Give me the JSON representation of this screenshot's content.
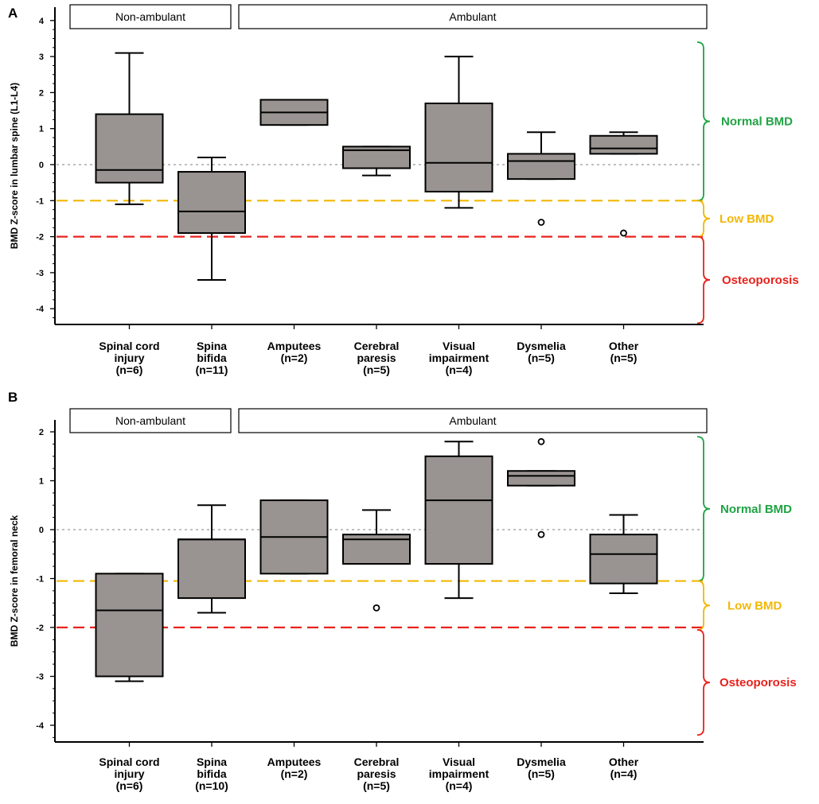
{
  "colors": {
    "box_fill": "#999491",
    "normal": "#1fa343",
    "low": "#f2b705",
    "osteoporosis": "#e8221c",
    "zero_line": "#999999"
  },
  "chart_data": [
    {
      "type": "box",
      "panel": "A",
      "ylabel": "BMD Z-score in lumbar spine (L1-L4)",
      "ylim": [
        -4.4,
        4.4
      ],
      "yticks": [
        4,
        3,
        2,
        1,
        0,
        -1,
        -2,
        -3,
        -4
      ],
      "ytick_labels": [
        "4",
        "3",
        "2",
        "1",
        "0",
        "-1",
        "-2",
        "-3",
        "-4"
      ],
      "groups": [
        {
          "label": "Non-ambulant",
          "from": 0,
          "to": 1
        },
        {
          "label": "Ambulant",
          "from": 2,
          "to": 6
        }
      ],
      "categories": [
        {
          "lines": [
            "Spinal cord",
            "injury",
            "(n=6)"
          ],
          "q1": -0.5,
          "median": -0.15,
          "q3": 1.4,
          "whisker_low": -1.1,
          "whisker_high": 3.1,
          "outliers": []
        },
        {
          "lines": [
            "Spina",
            "bifida",
            "(n=11)"
          ],
          "q1": -1.9,
          "median": -1.3,
          "q3": -0.2,
          "whisker_low": -3.2,
          "whisker_high": 0.2,
          "outliers": []
        },
        {
          "lines": [
            "Amputees",
            "(n=2)"
          ],
          "q1": 1.1,
          "median": 1.45,
          "q3": 1.8,
          "whisker_low": 1.1,
          "whisker_high": 1.8,
          "outliers": []
        },
        {
          "lines": [
            "Cerebral",
            "paresis",
            "(n=5)"
          ],
          "q1": -0.1,
          "median": 0.4,
          "q3": 0.5,
          "whisker_low": -0.3,
          "whisker_high": 0.5,
          "outliers": []
        },
        {
          "lines": [
            "Visual",
            "impairment",
            "(n=4)"
          ],
          "q1": -0.75,
          "median": 0.05,
          "q3": 1.7,
          "whisker_low": -1.2,
          "whisker_high": 3.0,
          "outliers": []
        },
        {
          "lines": [
            "Dysmelia",
            "(n=5)"
          ],
          "q1": -0.4,
          "median": 0.1,
          "q3": 0.3,
          "whisker_low": -0.4,
          "whisker_high": 0.9,
          "outliers": [
            -1.6
          ]
        },
        {
          "lines": [
            "Other",
            "(n=5)"
          ],
          "q1": 0.3,
          "median": 0.45,
          "q3": 0.8,
          "whisker_low": 0.3,
          "whisker_high": 0.9,
          "outliers": [
            -1.9
          ]
        }
      ],
      "reference_lines": [
        {
          "y": 0,
          "style": "dotted",
          "color": "#999999"
        },
        {
          "y": -1,
          "style": "dashed",
          "color": "#f2b705"
        },
        {
          "y": -2,
          "style": "dashed",
          "color": "#e8221c"
        }
      ],
      "zones": [
        {
          "label": "Normal BMD",
          "from": 3.4,
          "to": -1.0,
          "color": "#1fa343"
        },
        {
          "label": "Low BMD",
          "from": -1.0,
          "to": -2.0,
          "color": "#f2b705"
        },
        {
          "label": "Osteoporosis",
          "from": -2.0,
          "to": -4.4,
          "color": "#e8221c"
        }
      ]
    },
    {
      "type": "box",
      "panel": "B",
      "ylabel": "BMD Z-score in femoral neck",
      "ylim": [
        -4.3,
        2.3
      ],
      "yticks": [
        2,
        1,
        0,
        -1,
        -2,
        -3,
        -4
      ],
      "ytick_labels": [
        "2",
        "1",
        "0",
        "-1",
        "-2",
        "-3",
        "-4"
      ],
      "groups": [
        {
          "label": "Non-ambulant",
          "from": 0,
          "to": 1
        },
        {
          "label": "Ambulant",
          "from": 2,
          "to": 6
        }
      ],
      "categories": [
        {
          "lines": [
            "Spinal cord",
            "injury",
            "(n=6)"
          ],
          "q1": -3.0,
          "median": -1.65,
          "q3": -0.9,
          "whisker_low": -3.1,
          "whisker_high": -0.9,
          "outliers": []
        },
        {
          "lines": [
            "Spina",
            "bifida",
            "(n=10)"
          ],
          "q1": -1.4,
          "median": -0.2,
          "q3": -0.2,
          "whisker_low": -1.7,
          "whisker_high": 0.5,
          "outliers": []
        },
        {
          "lines": [
            "Amputees",
            "(n=2)"
          ],
          "q1": -0.9,
          "median": -0.15,
          "q3": 0.6,
          "whisker_low": -0.9,
          "whisker_high": 0.6,
          "outliers": []
        },
        {
          "lines": [
            "Cerebral",
            "paresis",
            "(n=5)"
          ],
          "q1": -0.7,
          "median": -0.2,
          "q3": -0.1,
          "whisker_low": -0.7,
          "whisker_high": 0.4,
          "outliers": [
            -1.6
          ]
        },
        {
          "lines": [
            "Visual",
            "impairment",
            "(n=4)"
          ],
          "q1": -0.7,
          "median": 0.6,
          "q3": 1.5,
          "whisker_low": -1.4,
          "whisker_high": 1.8,
          "outliers": []
        },
        {
          "lines": [
            "Dysmelia",
            "(n=5)"
          ],
          "q1": 0.9,
          "median": 1.1,
          "q3": 1.2,
          "whisker_low": 0.9,
          "whisker_high": 1.2,
          "outliers": [
            1.8,
            -0.1
          ]
        },
        {
          "lines": [
            "Other",
            "(n=4)"
          ],
          "q1": -1.1,
          "median": -0.5,
          "q3": -0.1,
          "whisker_low": -1.3,
          "whisker_high": 0.3,
          "outliers": []
        }
      ],
      "reference_lines": [
        {
          "y": 0,
          "style": "dotted",
          "color": "#999999"
        },
        {
          "y": -1.05,
          "style": "dashed",
          "color": "#f2b705"
        },
        {
          "y": -2.0,
          "style": "dashed",
          "color": "#e8221c"
        }
      ],
      "zones": [
        {
          "label": "Normal BMD",
          "from": 1.9,
          "to": -1.05,
          "color": "#1fa343"
        },
        {
          "label": "Low BMD",
          "from": -1.05,
          "to": -2.05,
          "color": "#f2b705"
        },
        {
          "label": "Osteoporosis",
          "from": -2.05,
          "to": -4.2,
          "color": "#e8221c"
        }
      ]
    }
  ]
}
